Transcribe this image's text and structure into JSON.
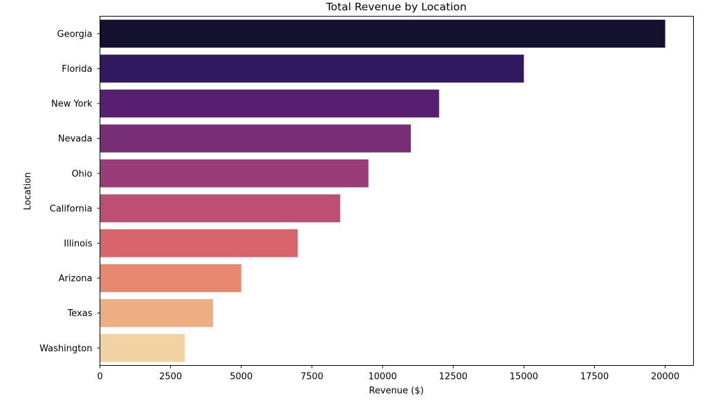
{
  "chart_data": {
    "type": "bar",
    "orientation": "horizontal",
    "title": "Total Revenue by Location",
    "xlabel": "Revenue ($)",
    "ylabel": "Location",
    "xlim": [
      0,
      21000
    ],
    "xticks": [
      0,
      2500,
      5000,
      7500,
      10000,
      12500,
      15000,
      17500,
      20000
    ],
    "categories": [
      "Georgia",
      "Florida",
      "New York",
      "Nevada",
      "Ohio",
      "California",
      "Illinois",
      "Arizona",
      "Texas",
      "Washington"
    ],
    "values": [
      20000,
      15000,
      12000,
      11000,
      9500,
      8500,
      7000,
      5000,
      4000,
      3000
    ],
    "colors": [
      "#14102f",
      "#311960",
      "#561f70",
      "#772e75",
      "#993c78",
      "#bc4f74",
      "#d9656c",
      "#e6886f",
      "#eeae84",
      "#f1d3a4"
    ],
    "grid": false,
    "legend": "none"
  }
}
